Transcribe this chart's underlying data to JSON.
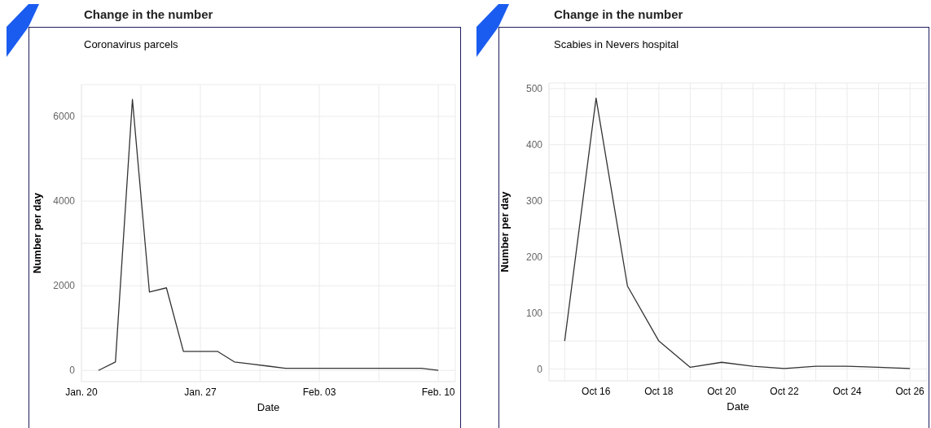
{
  "chart_data": [
    {
      "type": "line",
      "title": "Change in the number",
      "subtitle": "Coronavirus parcels",
      "xlabel": "Date",
      "ylabel": "Number per day",
      "x": [
        "--01-21",
        "--01-22",
        "--01-23",
        "--01-24",
        "--01-25",
        "--01-26",
        "--01-27",
        "--01-28",
        "--01-29",
        "--01-30",
        "--01-31",
        "--02-01",
        "--02-02",
        "--02-03",
        "--02-04",
        "--02-05",
        "--02-06",
        "--02-07",
        "--02-08",
        "--02-09",
        "--02-10"
      ],
      "series": [
        {
          "color": "#333333",
          "values": [
            0,
            200,
            6400,
            1850,
            1950,
            450,
            450,
            450,
            200,
            150,
            100,
            50,
            50,
            50,
            50,
            50,
            50,
            50,
            50,
            50,
            0
          ]
        }
      ],
      "xlim": [
        "--01-20",
        "--02-11"
      ],
      "xticks": [
        {
          "value": "--01-20",
          "label": "Jan. 20"
        },
        {
          "value": "--01-23T12:00",
          "label": null
        },
        {
          "value": "--01-27",
          "label": "Jan. 27"
        },
        {
          "value": "--01-30T12:00",
          "label": null
        },
        {
          "value": "--02-03",
          "label": "Feb. 03"
        },
        {
          "value": "--02-06T12:00",
          "label": null
        },
        {
          "value": "--02-10",
          "label": "Feb. 10"
        }
      ],
      "ylim": [
        -265,
        6750
      ],
      "yticks": [
        0,
        {
          "value": 1000,
          "label": null
        },
        2000,
        {
          "value": 3000,
          "label": null
        },
        4000,
        {
          "value": 5000,
          "label": null
        },
        6000
      ],
      "grid": true,
      "legend": false,
      "marker": "none",
      "line_style": "solid"
    },
    {
      "type": "line",
      "title": "Change in the number",
      "subtitle": "Scabies in Nevers hospital",
      "xlabel": "Date",
      "ylabel": "Number per day",
      "x": [
        "--10-15",
        "--10-16",
        "--10-17",
        "--10-18",
        "--10-19",
        "--10-20",
        "--10-21",
        "--10-22",
        "--10-23",
        "--10-24",
        "--10-25",
        "--10-26"
      ],
      "series": [
        {
          "color": "#333333",
          "values": [
            50,
            483,
            148,
            50,
            3,
            12,
            5,
            1,
            5,
            5,
            3,
            1
          ]
        }
      ],
      "xlim": [
        "--10-14T12:00",
        "--10-26T13:00"
      ],
      "xticks": [
        {
          "value": "--10-15",
          "label": null
        },
        {
          "value": "--10-16",
          "label": "Oct 16"
        },
        {
          "value": "--10-17",
          "label": null
        },
        {
          "value": "--10-18",
          "label": "Oct 18"
        },
        {
          "value": "--10-19",
          "label": null
        },
        {
          "value": "--10-20",
          "label": "Oct 20"
        },
        {
          "value": "--10-21",
          "label": null
        },
        {
          "value": "--10-22",
          "label": "Oct 22"
        },
        {
          "value": "--10-23",
          "label": null
        },
        {
          "value": "--10-24",
          "label": "Oct 24"
        },
        {
          "value": "--10-25",
          "label": null
        },
        {
          "value": "--10-26",
          "label": "Oct 26"
        }
      ],
      "ylim": [
        -21,
        510
      ],
      "yticks": [
        0,
        {
          "value": 50,
          "label": null
        },
        100,
        {
          "value": 150,
          "label": null
        },
        200,
        {
          "value": 250,
          "label": null
        },
        300,
        {
          "value": 350,
          "label": null
        },
        400,
        {
          "value": 450,
          "label": null
        },
        500
      ],
      "grid": true,
      "legend": false,
      "marker": "none",
      "line_style": "solid"
    }
  ]
}
